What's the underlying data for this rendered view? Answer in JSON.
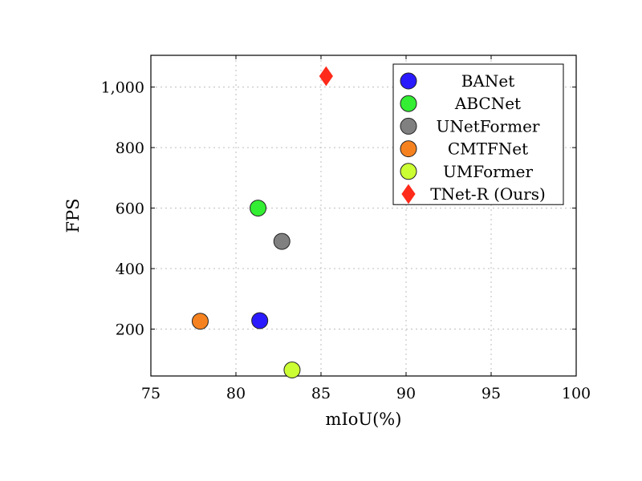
{
  "chart_data": {
    "type": "scatter",
    "title": "",
    "xlabel": "mIoU(%)",
    "ylabel": "FPS",
    "xlim": [
      75,
      100
    ],
    "ylim": [
      45,
      1105
    ],
    "xticks": [
      75,
      80,
      85,
      90,
      95,
      100
    ],
    "xtick_labels": [
      "75",
      "80",
      "85",
      "90",
      "95",
      "100"
    ],
    "yticks": [
      200,
      400,
      600,
      800,
      1000
    ],
    "ytick_labels": [
      "200",
      "400",
      "600",
      "800",
      "1,000"
    ],
    "grid": true,
    "legend_position": "top-right",
    "series": [
      {
        "name": "BANet",
        "marker": "circle",
        "color": "#2a1aff",
        "points": [
          {
            "x": 81.4,
            "y": 228
          }
        ]
      },
      {
        "name": "ABCNet",
        "marker": "circle",
        "color": "#33ee33",
        "points": [
          {
            "x": 81.3,
            "y": 600
          }
        ]
      },
      {
        "name": "UNetFormer",
        "marker": "circle",
        "color": "#808080",
        "points": [
          {
            "x": 82.7,
            "y": 490
          }
        ]
      },
      {
        "name": "CMTFNet",
        "marker": "circle",
        "color": "#f5821f",
        "points": [
          {
            "x": 77.9,
            "y": 226
          }
        ]
      },
      {
        "name": "UMFormer",
        "marker": "circle",
        "color": "#ccff33",
        "points": [
          {
            "x": 83.3,
            "y": 65
          }
        ]
      },
      {
        "name": "TNet-R (Ours)",
        "marker": "diamond",
        "color": "#ff2a1a",
        "points": [
          {
            "x": 85.3,
            "y": 1036
          }
        ]
      }
    ]
  }
}
